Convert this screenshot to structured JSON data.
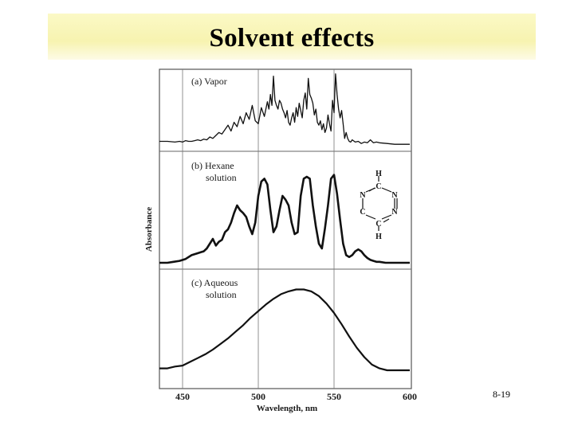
{
  "slide": {
    "title": "Solvent effects",
    "page_number": "8-19"
  },
  "chart_data": {
    "type": "line",
    "xlabel": "Wavelength, nm",
    "ylabel": "Absorbance",
    "x_ticks": [
      "450",
      "500",
      "550",
      "600"
    ],
    "xlim": [
      440,
      600
    ],
    "grid": true,
    "panels": [
      {
        "label": "(a) Vapor",
        "x": [
          440,
          445,
          448,
          450,
          452,
          454,
          456,
          458,
          460,
          462,
          464,
          466,
          468,
          470,
          472,
          474,
          476,
          478,
          480,
          482,
          484,
          486,
          488,
          490,
          492,
          494,
          496,
          498,
          500,
          502,
          504,
          506,
          507,
          508,
          509,
          510,
          511,
          512,
          513,
          514,
          515,
          516,
          517,
          518,
          519,
          520,
          521,
          522,
          523,
          524,
          525,
          526,
          527,
          528,
          529,
          530,
          531,
          532,
          533,
          534,
          535,
          536,
          537,
          538,
          539,
          540,
          541,
          542,
          543,
          544,
          545,
          546,
          547,
          548,
          549,
          550,
          551,
          552,
          553,
          554,
          555,
          556,
          557,
          558,
          559,
          560,
          561,
          562,
          564,
          566,
          568,
          570,
          572,
          574,
          576,
          578,
          580,
          585,
          590,
          595,
          600
        ],
        "y": [
          0.06,
          0.05,
          0.06,
          0.05,
          0.07,
          0.06,
          0.06,
          0.07,
          0.08,
          0.07,
          0.09,
          0.08,
          0.12,
          0.1,
          0.14,
          0.18,
          0.16,
          0.22,
          0.28,
          0.2,
          0.32,
          0.26,
          0.4,
          0.3,
          0.45,
          0.36,
          0.55,
          0.34,
          0.3,
          0.52,
          0.4,
          0.6,
          0.5,
          0.7,
          0.55,
          0.95,
          0.62,
          0.55,
          0.5,
          0.62,
          0.58,
          0.5,
          0.45,
          0.38,
          0.48,
          0.32,
          0.28,
          0.38,
          0.45,
          0.32,
          0.52,
          0.4,
          0.58,
          0.48,
          0.38,
          0.62,
          0.72,
          0.5,
          0.92,
          0.7,
          0.65,
          0.58,
          0.42,
          0.5,
          0.32,
          0.28,
          0.34,
          0.22,
          0.3,
          0.18,
          0.24,
          0.42,
          0.3,
          0.2,
          0.62,
          0.45,
          0.98,
          0.7,
          0.5,
          0.38,
          0.48,
          0.3,
          0.1,
          0.18,
          0.1,
          0.06,
          0.05,
          0.08,
          0.05,
          0.06,
          0.03,
          0.05,
          0.04,
          0.08,
          0.04,
          0.05,
          0.04,
          0.03,
          0.02,
          0.02,
          0.02
        ]
      },
      {
        "label": "(b) Hexane solution",
        "x": [
          440,
          444,
          448,
          452,
          456,
          460,
          462,
          464,
          466,
          468,
          470,
          472,
          474,
          476,
          478,
          480,
          482,
          484,
          486,
          488,
          490,
          492,
          494,
          496,
          498,
          500,
          502,
          504,
          506,
          508,
          510,
          512,
          514,
          516,
          518,
          520,
          522,
          524,
          526,
          528,
          530,
          532,
          534,
          536,
          538,
          540,
          542,
          544,
          546,
          548,
          550,
          552,
          554,
          556,
          558,
          560,
          562,
          564,
          566,
          568,
          570,
          572,
          574,
          576,
          578,
          580,
          584,
          588,
          592,
          596,
          600
        ],
        "y": [
          0.0,
          0.01,
          0.02,
          0.04,
          0.08,
          0.1,
          0.11,
          0.12,
          0.15,
          0.2,
          0.25,
          0.18,
          0.22,
          0.24,
          0.32,
          0.35,
          0.42,
          0.52,
          0.6,
          0.55,
          0.52,
          0.48,
          0.38,
          0.3,
          0.42,
          0.7,
          0.85,
          0.88,
          0.82,
          0.55,
          0.32,
          0.38,
          0.55,
          0.7,
          0.66,
          0.6,
          0.42,
          0.3,
          0.32,
          0.7,
          0.88,
          0.9,
          0.88,
          0.6,
          0.38,
          0.2,
          0.15,
          0.36,
          0.6,
          0.88,
          0.92,
          0.72,
          0.45,
          0.2,
          0.08,
          0.06,
          0.08,
          0.12,
          0.14,
          0.12,
          0.08,
          0.05,
          0.03,
          0.02,
          0.01,
          0.01,
          0.0,
          0.0,
          0.0,
          0.0,
          0.0
        ]
      },
      {
        "label": "(c) Aqueous solution",
        "x": [
          440,
          445,
          450,
          455,
          460,
          465,
          470,
          475,
          480,
          485,
          490,
          495,
          500,
          505,
          510,
          515,
          520,
          525,
          530,
          535,
          540,
          545,
          550,
          555,
          560,
          565,
          570,
          575,
          580,
          585,
          590,
          595,
          600
        ],
        "y": [
          0.02,
          0.04,
          0.05,
          0.09,
          0.13,
          0.17,
          0.22,
          0.28,
          0.34,
          0.41,
          0.48,
          0.56,
          0.63,
          0.7,
          0.76,
          0.81,
          0.84,
          0.86,
          0.86,
          0.84,
          0.79,
          0.71,
          0.61,
          0.49,
          0.36,
          0.24,
          0.14,
          0.06,
          0.02,
          0.0,
          0.0,
          0.0,
          0.0
        ]
      }
    ]
  },
  "structure": {
    "atoms": [
      "H",
      "C",
      "N",
      "N",
      "N",
      "N",
      "C",
      "C",
      "H"
    ]
  }
}
